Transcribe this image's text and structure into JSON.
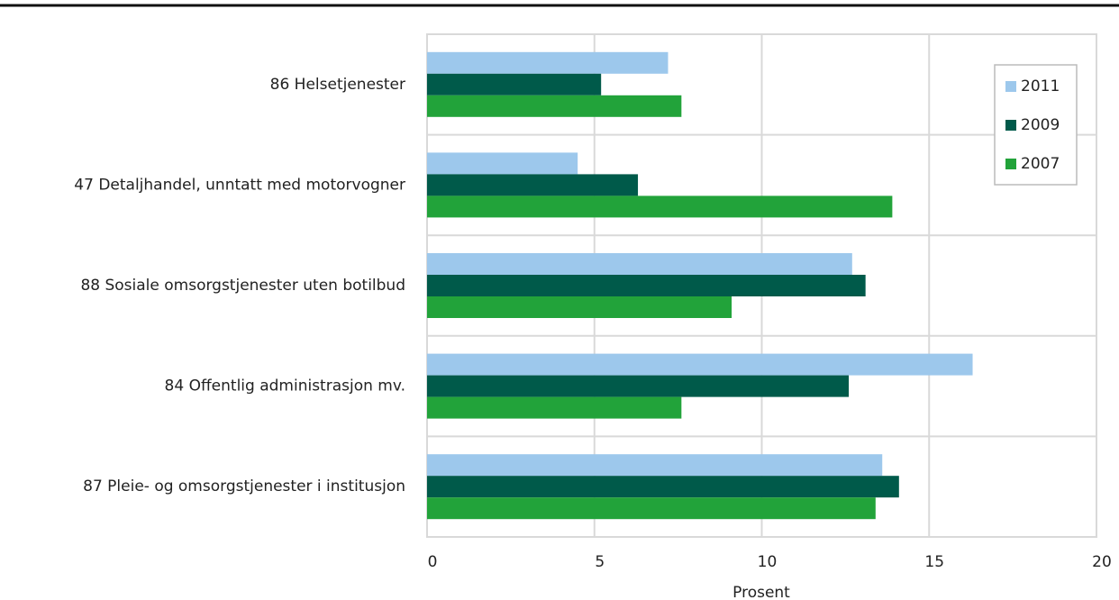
{
  "chart_data": {
    "type": "hbar",
    "categories": [
      "86 Helsetjenester",
      "47 Detaljhandel, unntatt med motorvogner",
      "88 Sosiale omsorgstjenester uten botilbud",
      "84 Offentlig administrasjon mv.",
      "87 Pleie- og omsorgstjenester i institusjon"
    ],
    "series": [
      {
        "name": "2011",
        "color": "#9dc8ec",
        "values": [
          7.2,
          4.5,
          12.7,
          16.3,
          13.6
        ]
      },
      {
        "name": "2009",
        "color": "#005a4a",
        "values": [
          5.2,
          6.3,
          13.1,
          12.6,
          14.1
        ]
      },
      {
        "name": "2007",
        "color": "#22a33a",
        "values": [
          7.6,
          13.9,
          9.1,
          7.6,
          13.4
        ]
      }
    ],
    "xlabel": "Prosent",
    "xlim": [
      0,
      20
    ],
    "xticks": [
      0,
      5,
      10,
      15,
      20
    ],
    "grid": true,
    "legend": "upper right"
  }
}
